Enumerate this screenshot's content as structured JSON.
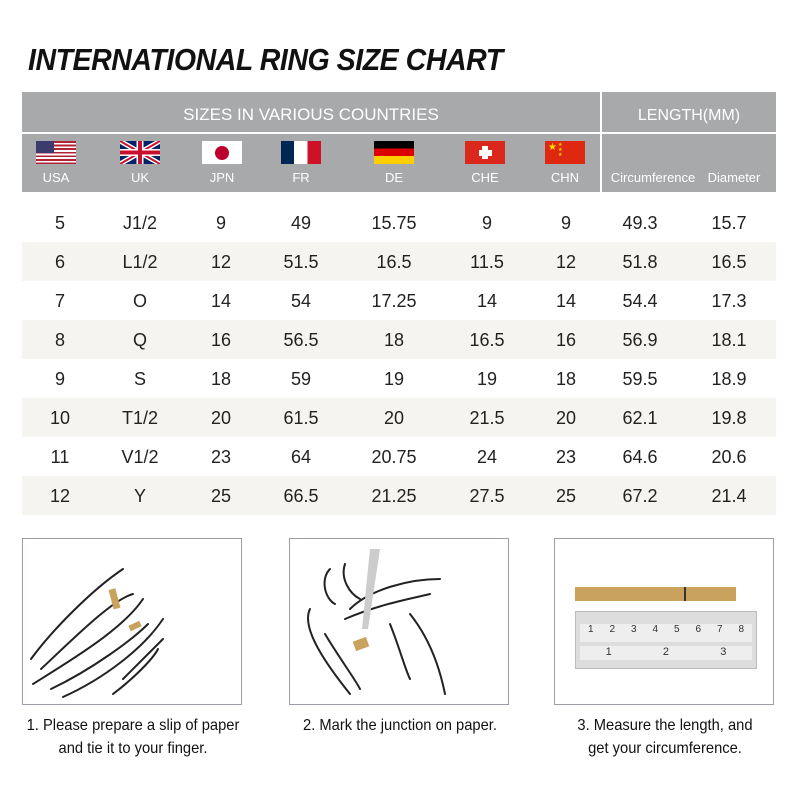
{
  "title": "INTERNATIONAL RING SIZE CHART",
  "header": {
    "sizes_label": "SIZES IN VARIOUS COUNTRIES",
    "length_label": "LENGTH(MM)",
    "countries": [
      {
        "code": "USA",
        "flag": "us-flag"
      },
      {
        "code": "UK",
        "flag": "uk-flag"
      },
      {
        "code": "JPN",
        "flag": "japan-flag"
      },
      {
        "code": "FR",
        "flag": "france-flag"
      },
      {
        "code": "DE",
        "flag": "germany-flag"
      },
      {
        "code": "CHE",
        "flag": "switzerland-flag"
      },
      {
        "code": "CHN",
        "flag": "china-flag"
      }
    ],
    "length_columns": [
      "Circumference",
      "Diameter"
    ]
  },
  "rows": [
    [
      "5",
      "J1/2",
      "9",
      "49",
      "15.75",
      "9",
      "9",
      "49.3",
      "15.7"
    ],
    [
      "6",
      "L1/2",
      "12",
      "51.5",
      "16.5",
      "11.5",
      "12",
      "51.8",
      "16.5"
    ],
    [
      "7",
      "O",
      "14",
      "54",
      "17.25",
      "14",
      "14",
      "54.4",
      "17.3"
    ],
    [
      "8",
      "Q",
      "16",
      "56.5",
      "18",
      "16.5",
      "16",
      "56.9",
      "18.1"
    ],
    [
      "9",
      "S",
      "18",
      "59",
      "19",
      "19",
      "18",
      "59.5",
      "18.9"
    ],
    [
      "10",
      "T1/2",
      "20",
      "61.5",
      "20",
      "21.5",
      "20",
      "62.1",
      "19.8"
    ],
    [
      "11",
      "V1/2",
      "23",
      "64",
      "20.75",
      "24",
      "23",
      "64.6",
      "20.6"
    ],
    [
      "12",
      "Y",
      "25",
      "66.5",
      "21.25",
      "27.5",
      "25",
      "67.2",
      "21.4"
    ]
  ],
  "steps": [
    {
      "line1": "1. Please prepare a slip of paper",
      "line2": "and tie it to your finger."
    },
    {
      "line1": "2. Mark the junction on paper.",
      "line2": ""
    },
    {
      "line1": "3. Measure the length, and",
      "line2": "get your circumference."
    }
  ],
  "ruler": {
    "cm_ticks": [
      "1",
      "2",
      "3",
      "4",
      "5",
      "6",
      "7",
      "8"
    ],
    "inch_ticks": [
      "1",
      "2",
      "3"
    ]
  },
  "colors": {
    "header_bg": "#a8a9ab",
    "alt_row": "#f6f4f0",
    "paper": "#c9a25e"
  }
}
